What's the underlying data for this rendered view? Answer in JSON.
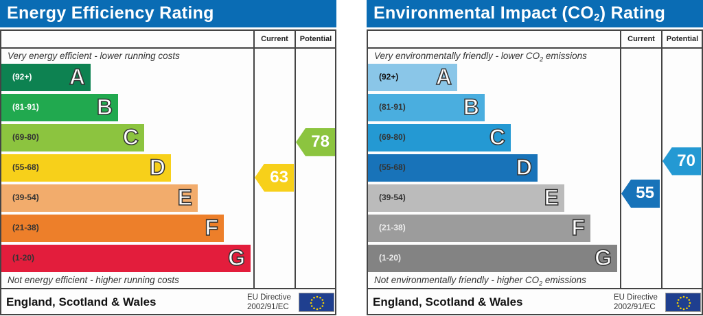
{
  "energy": {
    "title": "Energy Efficiency Rating",
    "current_label": "Current",
    "potential_label": "Potential",
    "top_note": "Very energy efficient - lower running costs",
    "bottom_note": "Not energy efficient - higher running costs",
    "footer": "England, Scotland & Wales",
    "eu_line1": "EU Directive",
    "eu_line2": "2002/91/EC",
    "bands": [
      {
        "letter": "A",
        "range": "(92+)",
        "color": "#0d8251",
        "text": "#fff"
      },
      {
        "letter": "B",
        "range": "(81-91)",
        "color": "#21a94f",
        "text": "#fff"
      },
      {
        "letter": "C",
        "range": "(69-80)",
        "color": "#8cc43f",
        "text": "#333"
      },
      {
        "letter": "D",
        "range": "(55-68)",
        "color": "#f7d01a",
        "text": "#333"
      },
      {
        "letter": "E",
        "range": "(39-54)",
        "color": "#f2ac6c",
        "text": "#333"
      },
      {
        "letter": "F",
        "range": "(21-38)",
        "color": "#ed7f2a",
        "text": "#333"
      },
      {
        "letter": "G",
        "range": "(1-20)",
        "color": "#e31d3c",
        "text": "#333"
      }
    ],
    "current": {
      "value": "63",
      "band": "D",
      "color": "#f7d01a"
    },
    "potential": {
      "value": "78",
      "band": "C",
      "color": "#8cc43f"
    }
  },
  "environment": {
    "title_pre": "Environmental Impact (CO",
    "title_sub": "2",
    "title_post": ") Rating",
    "current_label": "Current",
    "potential_label": "Potential",
    "top_note_pre": "Very environmentally friendly - lower CO",
    "top_note_sub": "2",
    "top_note_post": " emissions",
    "bottom_note_pre": "Not environmentally friendly - higher CO",
    "bottom_note_sub": "2",
    "bottom_note_post": " emissions",
    "footer": "England, Scotland & Wales",
    "eu_line1": "EU Directive",
    "eu_line2": "2002/91/EC",
    "bands": [
      {
        "letter": "A",
        "range": "(92+)",
        "color": "#8ac6e8",
        "text": "#111"
      },
      {
        "letter": "B",
        "range": "(81-91)",
        "color": "#4aaedf",
        "text": "#333"
      },
      {
        "letter": "C",
        "range": "(69-80)",
        "color": "#2499d3",
        "text": "#333"
      },
      {
        "letter": "D",
        "range": "(55-68)",
        "color": "#1873b9",
        "text": "#333"
      },
      {
        "letter": "E",
        "range": "(39-54)",
        "color": "#bbbbbb",
        "text": "#333"
      },
      {
        "letter": "F",
        "range": "(21-38)",
        "color": "#9c9c9c",
        "text": "#eee"
      },
      {
        "letter": "G",
        "range": "(1-20)",
        "color": "#838383",
        "text": "#eee"
      }
    ],
    "current": {
      "value": "55",
      "band": "D",
      "color": "#1873b9"
    },
    "potential": {
      "value": "70",
      "band": "C",
      "color": "#2499d3"
    }
  }
}
